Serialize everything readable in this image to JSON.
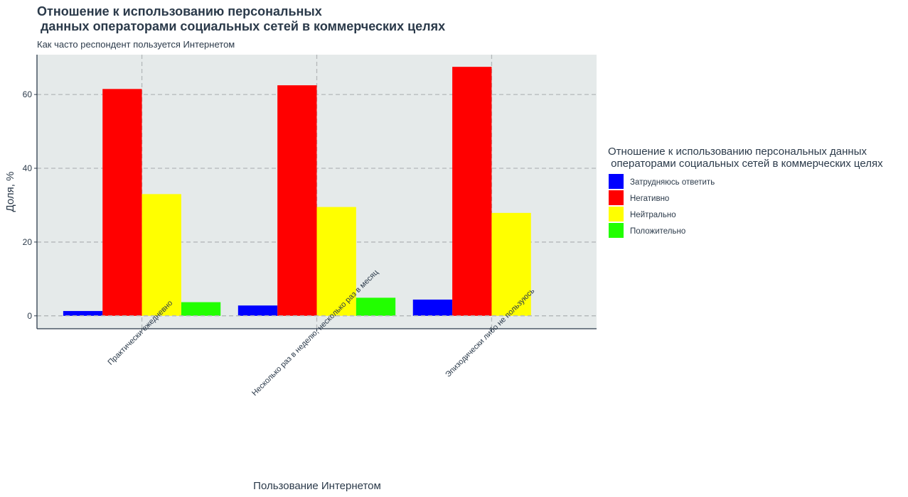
{
  "chart_data": {
    "type": "bar",
    "title_lines": [
      "Отношение к использованию персональных",
      " данных операторами социальных сетей в коммерческих целях"
    ],
    "subtitle": "Как часто респондент пользуется Интернетом",
    "xlabel": "Пользование Интернетом",
    "ylabel": "Доля, %",
    "categories": [
      "Практически ежедневно",
      "Несколько раз в неделю, несколько раз в месяц",
      "Эпизодически либо не пользуюсь"
    ],
    "ylim": [
      -3.5,
      70.8
    ],
    "yticks": [
      0,
      20,
      40,
      60
    ],
    "grid": true,
    "legend_position": "right",
    "legend_title_lines": [
      "Отношение к использованию персональных данных",
      " операторами социальных сетей в коммерческих целях"
    ],
    "series": [
      {
        "name": "Затрудняюсь ответить",
        "color": "#0000ff",
        "values": [
          1.3,
          2.8,
          4.4
        ]
      },
      {
        "name": "Негативно",
        "color": "#ff0000",
        "values": [
          61.5,
          62.5,
          67.5
        ]
      },
      {
        "name": "Нейтрально",
        "color": "#ffff00",
        "values": [
          33.0,
          29.5,
          27.9
        ]
      },
      {
        "name": "Положительно",
        "color": "#22ff00",
        "values": [
          3.7,
          4.9,
          0
        ]
      }
    ],
    "panel_background": "#e5eaea",
    "grid_color": "#b4b8ba",
    "axis_color": "#2b3a4a"
  }
}
